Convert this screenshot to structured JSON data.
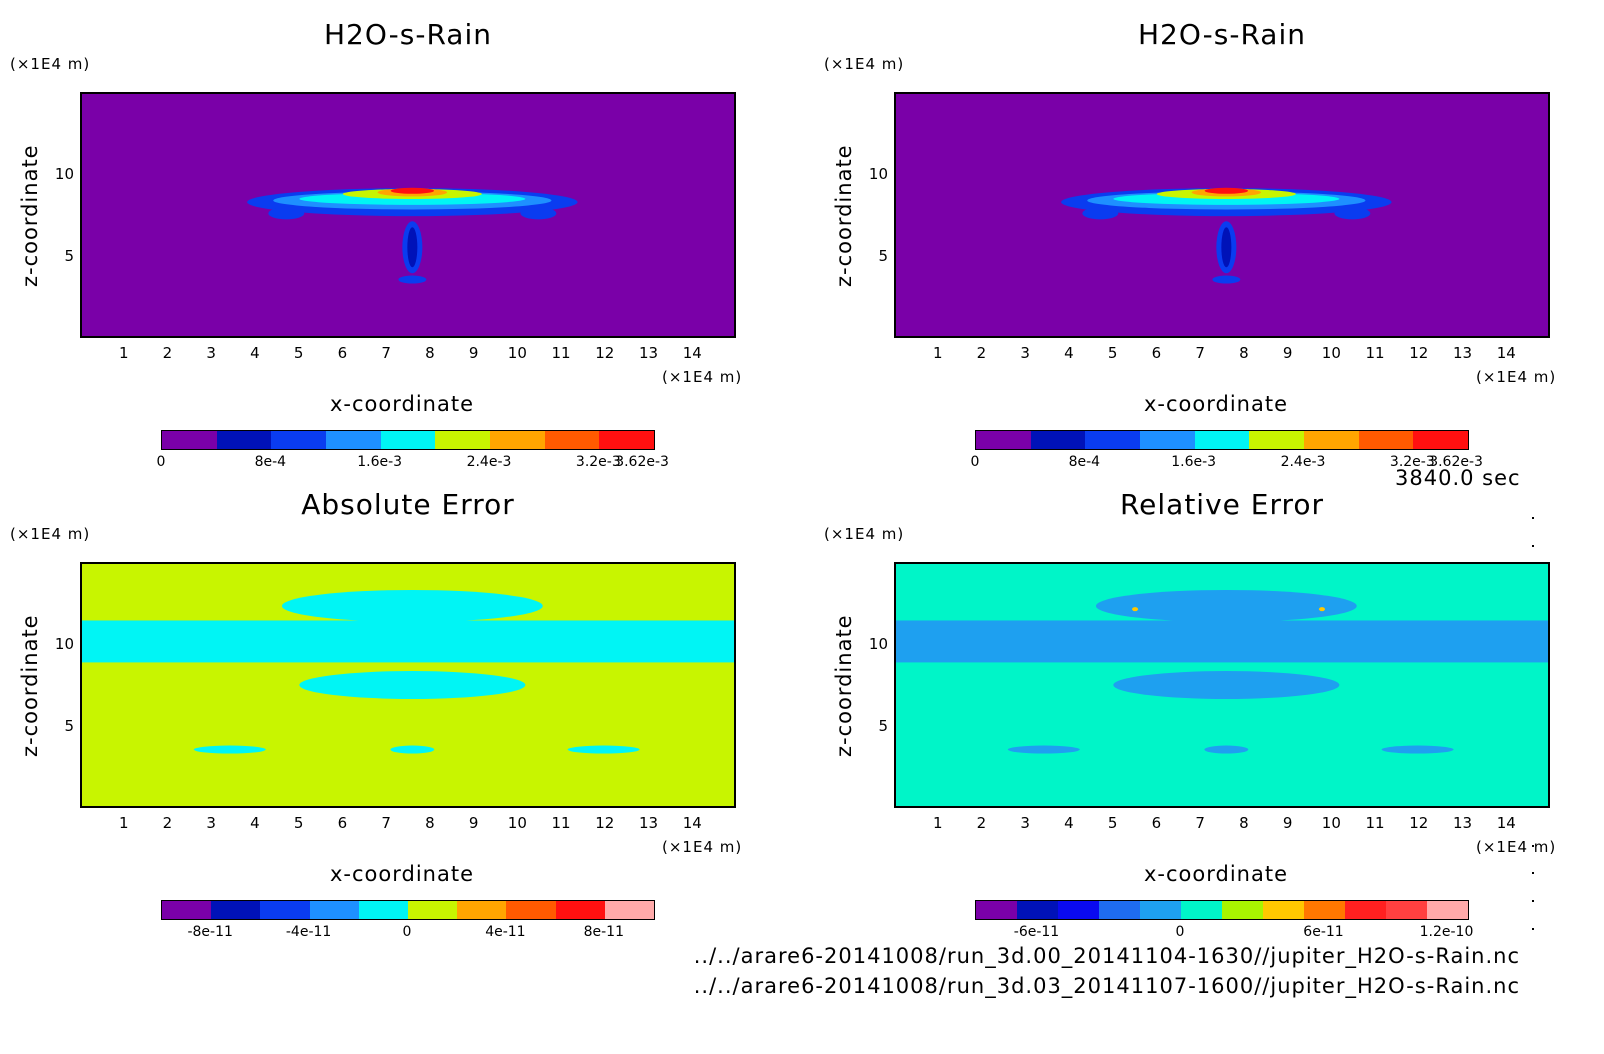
{
  "chart_data": [
    {
      "type": "heatmap",
      "title": "H2O-s-Rain",
      "xlabel": "x-coordinate",
      "ylabel": "z-coordinate",
      "x_unit": "(×1E4 m)",
      "y_unit": "(×1E4 m)",
      "x_ticks": [
        "1",
        "2",
        "3",
        "4",
        "5",
        "6",
        "7",
        "8",
        "9",
        "10",
        "11",
        "12",
        "13",
        "14"
      ],
      "y_ticks": [
        "5",
        "10"
      ],
      "xlim": [
        0,
        15
      ],
      "ylim": [
        0,
        15
      ],
      "background_color": "#7a00a8",
      "colorbar": {
        "colors": [
          "#7a00a8",
          "#0012b8",
          "#0a3cf0",
          "#1e90ff",
          "#00f5f5",
          "#c8f500",
          "#ffa500",
          "#ff5a00",
          "#ff1010"
        ],
        "tick_labels": [
          "0",
          "8e-4",
          "1.6e-3",
          "2.4e-3",
          "3.2e-3",
          "3.62e-3"
        ],
        "max": 0.00362
      }
    },
    {
      "type": "heatmap",
      "title": "H2O-s-Rain",
      "xlabel": "x-coordinate",
      "ylabel": "z-coordinate",
      "x_unit": "(×1E4 m)",
      "y_unit": "(×1E4 m)",
      "x_ticks": [
        "1",
        "2",
        "3",
        "4",
        "5",
        "6",
        "7",
        "8",
        "9",
        "10",
        "11",
        "12",
        "13",
        "14"
      ],
      "y_ticks": [
        "5",
        "10"
      ],
      "xlim": [
        0,
        15
      ],
      "ylim": [
        0,
        15
      ],
      "background_color": "#7a00a8",
      "colorbar": {
        "colors": [
          "#7a00a8",
          "#0012b8",
          "#0a3cf0",
          "#1e90ff",
          "#00f5f5",
          "#c8f500",
          "#ffa500",
          "#ff5a00",
          "#ff1010"
        ],
        "tick_labels": [
          "0",
          "8e-4",
          "1.6e-3",
          "2.4e-3",
          "3.2e-3",
          "3.62e-3"
        ],
        "max": 0.00362
      }
    },
    {
      "type": "heatmap",
      "title": "Absolute Error",
      "xlabel": "x-coordinate",
      "ylabel": "z-coordinate",
      "x_unit": "(×1E4 m)",
      "y_unit": "(×1E4 m)",
      "x_ticks": [
        "1",
        "2",
        "3",
        "4",
        "5",
        "6",
        "7",
        "8",
        "9",
        "10",
        "11",
        "12",
        "13",
        "14"
      ],
      "y_ticks": [
        "5",
        "10"
      ],
      "xlim": [
        0,
        15
      ],
      "ylim": [
        0,
        15
      ],
      "background_color": "#c8f500",
      "colorbar": {
        "colors": [
          "#7a00a8",
          "#0012b8",
          "#0a3cf0",
          "#1e90ff",
          "#00f5f5",
          "#c8f500",
          "#ffa500",
          "#ff5a00",
          "#ff1010",
          "#ffaaaa"
        ],
        "tick_labels": [
          "-8e-11",
          "-4e-11",
          "0",
          "4e-11",
          "8e-11"
        ]
      }
    },
    {
      "type": "heatmap",
      "title": "Relative Error",
      "xlabel": "x-coordinate",
      "ylabel": "z-coordinate",
      "x_unit": "(×1E4 m)",
      "y_unit": "(×1E4 m)",
      "x_ticks": [
        "1",
        "2",
        "3",
        "4",
        "5",
        "6",
        "7",
        "8",
        "9",
        "10",
        "11",
        "12",
        "13",
        "14"
      ],
      "y_ticks": [
        "5",
        "10"
      ],
      "xlim": [
        0,
        15
      ],
      "ylim": [
        0,
        15
      ],
      "background_color": "#00f5c8",
      "colorbar": {
        "colors": [
          "#7a00a8",
          "#0012b8",
          "#0a0af0",
          "#1e6cf0",
          "#1ea0f0",
          "#00f5c8",
          "#a8f500",
          "#ffc800",
          "#ff7800",
          "#ff2020",
          "#ff4040",
          "#ffaaaa"
        ],
        "tick_labels": [
          "-6e-11",
          "0",
          "6e-11",
          "1.2e-10"
        ]
      }
    }
  ],
  "time_label": "3840.0 sec",
  "files": [
    "../../arare6-20141008/run_3d.00_20141104-1630//jupiter_H2O-s-Rain.nc",
    "../../arare6-20141008/run_3d.03_20141107-1600//jupiter_H2O-s-Rain.nc"
  ]
}
